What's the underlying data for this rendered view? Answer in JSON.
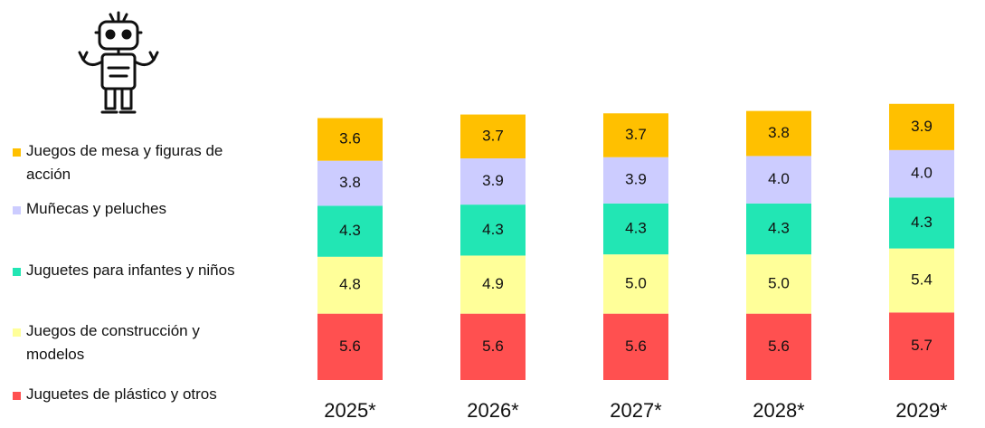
{
  "chart_data": {
    "type": "stacked-bar",
    "categories": [
      "2025*",
      "2026*",
      "2027*",
      "2028*",
      "2029*"
    ],
    "series": [
      {
        "name": "Juguetes de plástico y otros",
        "color": "#ff5050",
        "values": [
          5.6,
          5.6,
          5.6,
          5.6,
          5.7
        ],
        "value_labels": [
          "5.6",
          "5.6",
          "5.6",
          "5.6",
          "5.7"
        ]
      },
      {
        "name": "Juegos de construcción y modelos",
        "color": "#ffff99",
        "values": [
          4.8,
          4.9,
          5.0,
          5.0,
          5.4
        ],
        "value_labels": [
          "4.8",
          "4.9",
          "5.0",
          "5.0",
          "5.4"
        ]
      },
      {
        "name": "Juguetes para infantes y niños",
        "color": "#22e6b4",
        "values": [
          4.3,
          4.3,
          4.3,
          4.3,
          4.3
        ],
        "value_labels": [
          "4.3",
          "4.3",
          "4.3",
          "4.3",
          "4.3"
        ]
      },
      {
        "name": "Muñecas y peluches",
        "color": "#ccccff",
        "values": [
          3.8,
          3.9,
          3.9,
          4.0,
          4.0
        ],
        "value_labels": [
          "3.8",
          "3.9",
          "3.9",
          "4.0",
          "4.0"
        ]
      },
      {
        "name": "Juegos de mesa y figuras de acción",
        "color": "#ffc000",
        "values": [
          3.6,
          3.7,
          3.7,
          3.8,
          3.9
        ],
        "value_labels": [
          "3.6",
          "3.7",
          "3.7",
          "3.8",
          "3.9"
        ]
      }
    ]
  }
}
